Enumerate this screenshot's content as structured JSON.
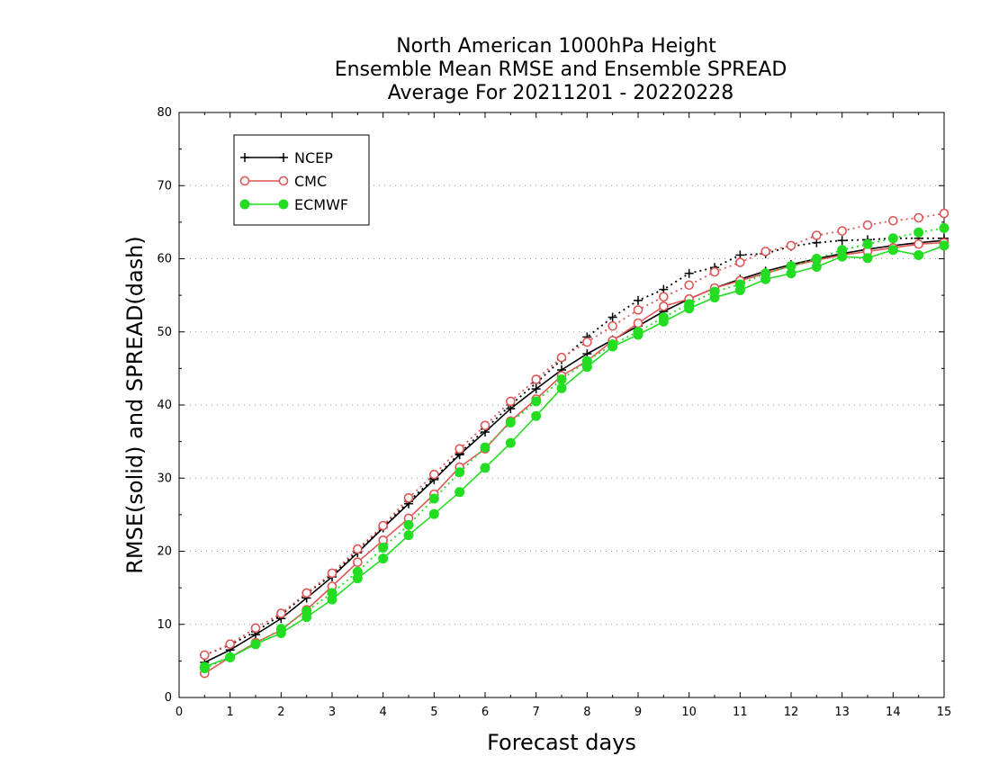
{
  "chart_data": {
    "type": "line",
    "title_lines": [
      "North American 1000hPa Height",
      "Ensemble Mean RMSE and Ensemble SPREAD",
      "Average For 20211201 - 20220228"
    ],
    "xlabel": "Forecast days",
    "ylabel": "RMSE(solid) and SPREAD(dash)",
    "xlim": [
      0,
      15
    ],
    "ylim": [
      0,
      80
    ],
    "xticks": [
      0,
      1,
      2,
      3,
      4,
      5,
      6,
      7,
      8,
      9,
      10,
      11,
      12,
      13,
      14,
      15
    ],
    "yticks": [
      0,
      10,
      20,
      30,
      40,
      50,
      60,
      70,
      80
    ],
    "grid": true,
    "legend_position": "top-left",
    "x": [
      0.5,
      1,
      1.5,
      2,
      2.5,
      3,
      3.5,
      4,
      4.5,
      5,
      5.5,
      6,
      6.5,
      7,
      7.5,
      8,
      8.5,
      9,
      9.5,
      10,
      10.5,
      11,
      11.5,
      12,
      12.5,
      13,
      13.5,
      14,
      14.5,
      15
    ],
    "series": [
      {
        "name": "NCEP",
        "marker": "plus",
        "color": "#000000",
        "rmse": [
          4.8,
          6.5,
          8.6,
          10.8,
          13.6,
          16.5,
          19.8,
          23.2,
          26.5,
          29.8,
          33.2,
          36.3,
          39.5,
          42.2,
          44.8,
          47.0,
          48.9,
          50.8,
          52.8,
          54.5,
          56.0,
          57.2,
          58.3,
          59.2,
          60.0,
          60.7,
          61.3,
          61.8,
          62.2,
          62.5
        ],
        "spread": [
          5.8,
          7.2,
          9.0,
          11.3,
          14.2,
          16.8,
          20.0,
          23.3,
          26.8,
          30.0,
          33.4,
          36.7,
          40.0,
          43.0,
          46.2,
          49.3,
          52.0,
          54.3,
          55.8,
          58.0,
          58.8,
          60.5,
          60.7,
          61.7,
          62.2,
          62.5,
          62.6,
          62.8,
          62.8,
          62.8
        ]
      },
      {
        "name": "CMC",
        "marker": "open-circle",
        "color": "#e05555",
        "rmse": [
          3.3,
          5.5,
          7.5,
          9.2,
          12.0,
          15.2,
          18.5,
          21.5,
          24.5,
          27.8,
          31.5,
          34.0,
          37.8,
          40.8,
          44.0,
          46.0,
          48.8,
          51.2,
          53.5,
          54.5,
          56.0,
          57.0,
          58.0,
          59.0,
          59.8,
          60.5,
          61.0,
          61.5,
          62.0,
          62.2
        ],
        "spread": [
          5.8,
          7.3,
          9.5,
          11.5,
          14.3,
          17.0,
          20.3,
          23.5,
          27.3,
          30.5,
          34.0,
          37.2,
          40.5,
          43.5,
          46.5,
          48.6,
          50.8,
          53.0,
          54.8,
          56.4,
          58.2,
          59.5,
          61.0,
          61.8,
          63.2,
          63.8,
          64.6,
          65.2,
          65.6,
          66.2
        ]
      },
      {
        "name": "ECMWF",
        "marker": "filled-circle",
        "color": "#22dd22",
        "rmse": [
          4.2,
          5.5,
          7.3,
          8.8,
          11.0,
          13.4,
          16.3,
          19.0,
          22.2,
          25.1,
          28.1,
          31.4,
          34.8,
          38.5,
          42.3,
          45.2,
          48.0,
          49.6,
          51.4,
          53.2,
          54.7,
          55.7,
          57.2,
          58.0,
          58.9,
          60.3,
          60.1,
          61.2,
          60.5,
          61.8
        ],
        "spread": [
          4.0,
          5.5,
          7.3,
          9.4,
          11.8,
          14.3,
          17.2,
          20.5,
          23.6,
          27.2,
          30.8,
          34.2,
          37.6,
          40.5,
          43.5,
          46.0,
          48.3,
          50.0,
          52.0,
          53.8,
          55.5,
          56.5,
          58.0,
          59.0,
          60.0,
          61.2,
          62.0,
          62.8,
          63.6,
          64.2
        ]
      }
    ]
  }
}
